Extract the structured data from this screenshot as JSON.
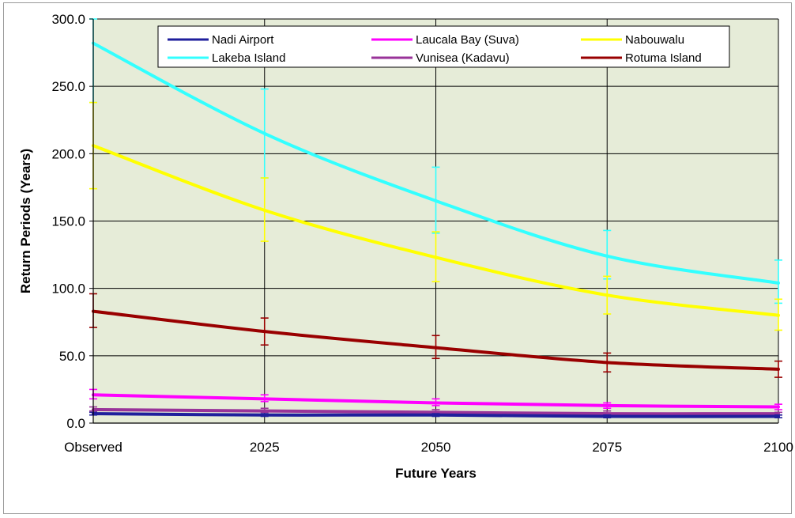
{
  "chart_data": {
    "type": "line",
    "xlabel": "Future Years",
    "ylabel": "Return Periods (Years)",
    "categories": [
      "Observed",
      "2025",
      "2050",
      "2075",
      "2100"
    ],
    "ylim": [
      0,
      300
    ],
    "ytick_labels": [
      "0.0",
      "50.0",
      "100.0",
      "150.0",
      "200.0",
      "250.0",
      "300.0"
    ],
    "yticks": [
      0,
      50,
      100,
      150,
      200,
      250,
      300
    ],
    "grid": true,
    "legend_position": "top",
    "plot_background": "#e6ecd8",
    "series": [
      {
        "name": "Nadi Airport",
        "color": "#1f1f9c",
        "values": [
          7,
          6,
          6,
          5,
          5
        ],
        "err_low": [
          6,
          5,
          5,
          4,
          4
        ],
        "err_high": [
          8,
          7,
          7,
          6,
          6
        ]
      },
      {
        "name": "Laucala Bay (Suva)",
        "color": "#ff00ff",
        "values": [
          21,
          18,
          15,
          13,
          12
        ],
        "err_low": [
          18,
          16,
          13,
          11,
          10
        ],
        "err_high": [
          25,
          21,
          18,
          15,
          14
        ]
      },
      {
        "name": "Nabouwalu",
        "color": "#ffff00",
        "values": [
          206,
          158,
          123,
          95,
          80
        ],
        "err_low": [
          174,
          135,
          105,
          81,
          69
        ],
        "err_high": [
          238,
          182,
          142,
          109,
          92
        ]
      },
      {
        "name": "Lakeba Island",
        "color": "#33ffff",
        "values": [
          282,
          215,
          165,
          124,
          104
        ],
        "err_low": [
          238,
          182,
          141,
          107,
          89
        ],
        "err_high": [
          300,
          248,
          190,
          143,
          121
        ]
      },
      {
        "name": "Vunisea (Kadavu)",
        "color": "#993399",
        "values": [
          10,
          9,
          8,
          7,
          7
        ],
        "err_low": [
          9,
          8,
          7,
          6,
          6
        ],
        "err_high": [
          12,
          11,
          10,
          9,
          8
        ]
      },
      {
        "name": "Rotuma Island",
        "color": "#990000",
        "values": [
          83,
          68,
          56,
          45,
          40
        ],
        "err_low": [
          71,
          58,
          48,
          38,
          34
        ],
        "err_high": [
          96,
          78,
          65,
          52,
          46
        ]
      }
    ]
  }
}
